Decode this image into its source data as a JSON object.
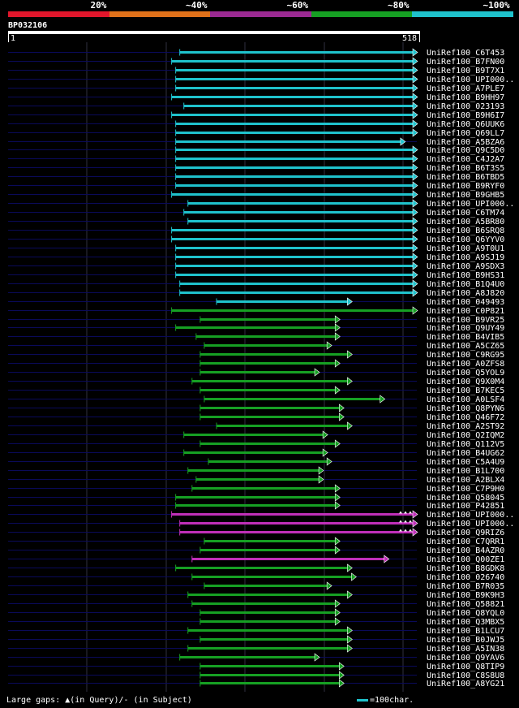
{
  "identity_bins": [
    {
      "label": "20%",
      "color": "#e0162b"
    },
    {
      "label": "~40%",
      "color": "#e0711a"
    },
    {
      "label": "~60%",
      "color": "#9b2a92"
    },
    {
      "label": "~80%",
      "color": "#16a023"
    },
    {
      "label": "~100%",
      "color": "#1fc2cc"
    }
  ],
  "query": {
    "id": "BP032106",
    "start": "1",
    "end": "518"
  },
  "hits": [
    {
      "label": "UniRef100_C6T453",
      "s": 0.42,
      "e": 1.0,
      "c": "cyan"
    },
    {
      "label": "UniRef100_B7FN00",
      "s": 0.4,
      "e": 1.0,
      "c": "cyan"
    },
    {
      "label": "UniRef100_B9T7X1",
      "s": 0.41,
      "e": 1.0,
      "c": "cyan"
    },
    {
      "label": "UniRef100_UPI000..",
      "s": 0.41,
      "e": 1.0,
      "c": "cyan"
    },
    {
      "label": "UniRef100_A7PLE7",
      "s": 0.41,
      "e": 1.0,
      "c": "cyan"
    },
    {
      "label": "UniRef100_B9HH97",
      "s": 0.4,
      "e": 1.0,
      "c": "cyan"
    },
    {
      "label": "UniRef100_023193",
      "s": 0.43,
      "e": 1.0,
      "c": "cyan"
    },
    {
      "label": "UniRef100_B9H6I7",
      "s": 0.4,
      "e": 1.0,
      "c": "cyan"
    },
    {
      "label": "UniRef100_Q6UUK6",
      "s": 0.41,
      "e": 1.0,
      "c": "cyan"
    },
    {
      "label": "UniRef100_Q69LL7",
      "s": 0.41,
      "e": 1.0,
      "c": "cyan"
    },
    {
      "label": "UniRef100_A5BZA6",
      "s": 0.41,
      "e": 0.97,
      "c": "cyan"
    },
    {
      "label": "UniRef100_Q9C5D0",
      "s": 0.41,
      "e": 1.0,
      "c": "cyan"
    },
    {
      "label": "UniRef100_C4J2A7",
      "s": 0.41,
      "e": 1.0,
      "c": "cyan"
    },
    {
      "label": "UniRef100_B6T3S5",
      "s": 0.41,
      "e": 1.0,
      "c": "cyan"
    },
    {
      "label": "UniRef100_B6TBD5",
      "s": 0.41,
      "e": 1.0,
      "c": "cyan"
    },
    {
      "label": "UniRef100_B9RYF0",
      "s": 0.41,
      "e": 1.0,
      "c": "cyan"
    },
    {
      "label": "UniRef100_B9GHB5",
      "s": 0.4,
      "e": 1.0,
      "c": "cyan"
    },
    {
      "label": "UniRef100_UPI000..",
      "s": 0.44,
      "e": 1.0,
      "c": "cyan"
    },
    {
      "label": "UniRef100_C6TM74",
      "s": 0.43,
      "e": 1.0,
      "c": "cyan"
    },
    {
      "label": "UniRef100_A5BR80",
      "s": 0.44,
      "e": 1.0,
      "c": "cyan"
    },
    {
      "label": "UniRef100_B6SRQ8",
      "s": 0.4,
      "e": 1.0,
      "c": "cyan"
    },
    {
      "label": "UniRef100_Q6YYV0",
      "s": 0.4,
      "e": 1.0,
      "c": "cyan"
    },
    {
      "label": "UniRef100_A9T0U1",
      "s": 0.41,
      "e": 1.0,
      "c": "cyan"
    },
    {
      "label": "UniRef100_A9SJ19",
      "s": 0.41,
      "e": 1.0,
      "c": "cyan"
    },
    {
      "label": "UniRef100_A9SDX3",
      "s": 0.41,
      "e": 1.0,
      "c": "cyan"
    },
    {
      "label": "UniRef100_B9HS31",
      "s": 0.41,
      "e": 1.0,
      "c": "cyan"
    },
    {
      "label": "UniRef100_B1Q4U0",
      "s": 0.42,
      "e": 1.0,
      "c": "cyan"
    },
    {
      "label": "UniRef100_A8J820",
      "s": 0.42,
      "e": 1.0,
      "c": "cyan"
    },
    {
      "label": "UniRef100_049493",
      "s": 0.51,
      "e": 0.84,
      "c": "cyan"
    },
    {
      "label": "UniRef100_C0P821",
      "s": 0.4,
      "e": 1.0,
      "c": "green"
    },
    {
      "label": "UniRef100_B9VR25",
      "s": 0.47,
      "e": 0.81,
      "c": "green"
    },
    {
      "label": "UniRef100_Q9UY49",
      "s": 0.41,
      "e": 0.81,
      "c": "green"
    },
    {
      "label": "UniRef100_B4VIB5",
      "s": 0.46,
      "e": 0.81,
      "c": "green"
    },
    {
      "label": "UniRef100_A5CZ65",
      "s": 0.48,
      "e": 0.79,
      "c": "green"
    },
    {
      "label": "UniRef100_C9RG95",
      "s": 0.47,
      "e": 0.84,
      "c": "green"
    },
    {
      "label": "UniRef100_A0ZFS8",
      "s": 0.47,
      "e": 0.81,
      "c": "green"
    },
    {
      "label": "UniRef100_Q5YOL9",
      "s": 0.47,
      "e": 0.76,
      "c": "green"
    },
    {
      "label": "UniRef100_Q9X0M4",
      "s": 0.45,
      "e": 0.84,
      "c": "green"
    },
    {
      "label": "UniRef100_B7KEC5",
      "s": 0.47,
      "e": 0.81,
      "c": "green"
    },
    {
      "label": "UniRef100_A0LSF4",
      "s": 0.48,
      "e": 0.92,
      "c": "green"
    },
    {
      "label": "UniRef100_Q8PYN6",
      "s": 0.47,
      "e": 0.82,
      "c": "green"
    },
    {
      "label": "UniRef100_Q46F72",
      "s": 0.47,
      "e": 0.82,
      "c": "green"
    },
    {
      "label": "UniRef100_A2ST92",
      "s": 0.51,
      "e": 0.84,
      "c": "green"
    },
    {
      "label": "UniRef100_Q2IQM2",
      "s": 0.43,
      "e": 0.78,
      "c": "green"
    },
    {
      "label": "UniRef100_Q112V5",
      "s": 0.47,
      "e": 0.81,
      "c": "green"
    },
    {
      "label": "UniRef100_B4UG62",
      "s": 0.43,
      "e": 0.78,
      "c": "green"
    },
    {
      "label": "UniRef100_C5A4U9",
      "s": 0.49,
      "e": 0.79,
      "c": "green"
    },
    {
      "label": "UniRef100_B1L700",
      "s": 0.44,
      "e": 0.77,
      "c": "green"
    },
    {
      "label": "UniRef100_A2BLX4",
      "s": 0.46,
      "e": 0.77,
      "c": "green"
    },
    {
      "label": "UniRef100_C7P9H0",
      "s": 0.45,
      "e": 0.81,
      "c": "green"
    },
    {
      "label": "UniRef100_Q58045",
      "s": 0.41,
      "e": 0.81,
      "c": "green"
    },
    {
      "label": "UniRef100_P42851",
      "s": 0.41,
      "e": 0.81,
      "c": "green"
    },
    {
      "label": "UniRef100_UPI000..",
      "s": 0.4,
      "e": 1.0,
      "c": "magenta",
      "gap": true
    },
    {
      "label": "UniRef100_UPI000..",
      "s": 0.42,
      "e": 1.0,
      "c": "magenta",
      "gap": true
    },
    {
      "label": "UniRef100_Q9RIZ6",
      "s": 0.42,
      "e": 1.0,
      "c": "magenta",
      "gap": true
    },
    {
      "label": "UniRef100_C7QRR1",
      "s": 0.48,
      "e": 0.81,
      "c": "green"
    },
    {
      "label": "UniRef100_B4AZR0",
      "s": 0.47,
      "e": 0.81,
      "c": "green"
    },
    {
      "label": "UniRef100_Q00ZE1",
      "s": 0.45,
      "e": 0.93,
      "c": "magenta"
    },
    {
      "label": "UniRef100_B8GDK8",
      "s": 0.41,
      "e": 0.84,
      "c": "green"
    },
    {
      "label": "UniRef100_026740",
      "s": 0.45,
      "e": 0.85,
      "c": "green"
    },
    {
      "label": "UniRef100_B7R035",
      "s": 0.48,
      "e": 0.79,
      "c": "green"
    },
    {
      "label": "UniRef100_B9K9H3",
      "s": 0.44,
      "e": 0.84,
      "c": "green"
    },
    {
      "label": "UniRef100_Q58821",
      "s": 0.45,
      "e": 0.81,
      "c": "green"
    },
    {
      "label": "UniRef100_Q8YQL0",
      "s": 0.47,
      "e": 0.81,
      "c": "green"
    },
    {
      "label": "UniRef100_Q3MBX5",
      "s": 0.47,
      "e": 0.81,
      "c": "green"
    },
    {
      "label": "UniRef100_B1LCU7",
      "s": 0.44,
      "e": 0.84,
      "c": "green"
    },
    {
      "label": "UniRef100_B0JWJ5",
      "s": 0.47,
      "e": 0.84,
      "c": "green"
    },
    {
      "label": "UniRef100_A5IN38",
      "s": 0.44,
      "e": 0.84,
      "c": "green"
    },
    {
      "label": "UniRef100_Q9YAV6",
      "s": 0.42,
      "e": 0.76,
      "c": "green"
    },
    {
      "label": "UniRef100_Q8TIP9",
      "s": 0.47,
      "e": 0.82,
      "c": "green"
    },
    {
      "label": "UniRef100_C8S8U8",
      "s": 0.47,
      "e": 0.82,
      "c": "green"
    },
    {
      "label": "UniRef100_A8YG21",
      "s": 0.47,
      "e": 0.82,
      "c": "green"
    }
  ],
  "colors": {
    "cyan": "#1fc2cc",
    "green": "#16a023",
    "magenta": "#c02fb8",
    "track": "#0a0a5a",
    "grid": "#303040"
  },
  "footer": {
    "legend": "Large gaps: ▲(in Query)/- (in Subject)",
    "scale": "=100char."
  }
}
